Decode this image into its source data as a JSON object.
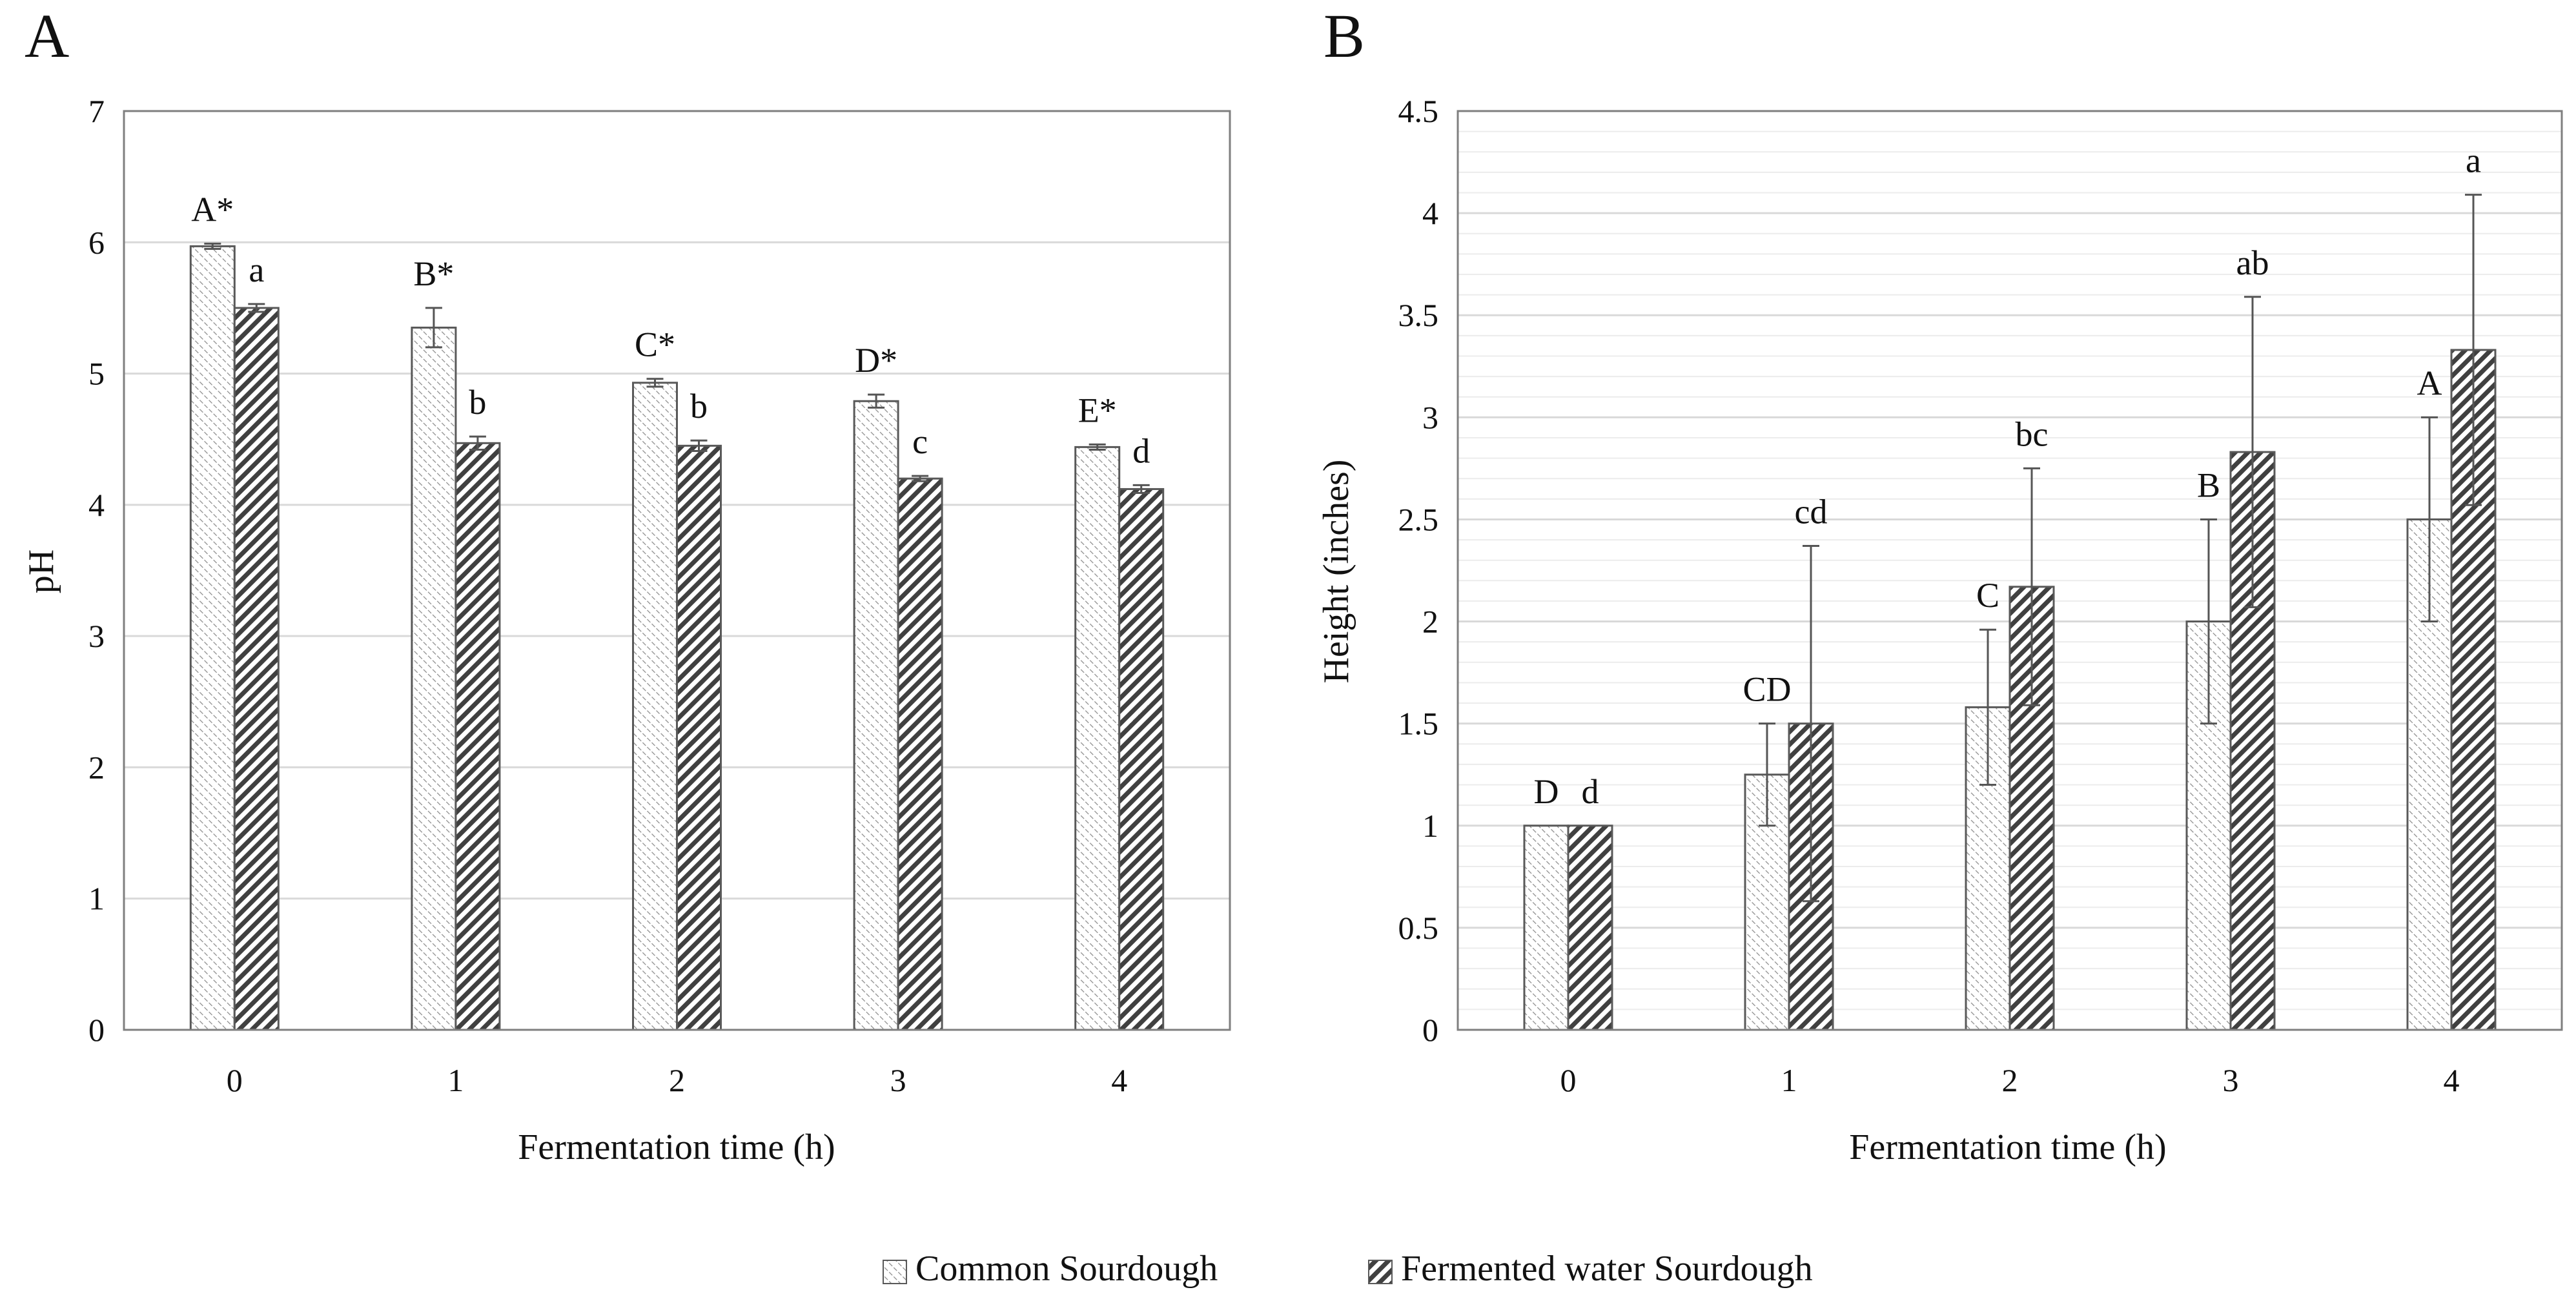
{
  "figure": {
    "legend": {
      "common_label": "Common Sourdough",
      "fermented_label": "Fermented water Sourdough"
    },
    "colors": {
      "frame": "#7f7f7f",
      "gridline": "#d9d9d9",
      "bar_stroke": "#595959",
      "hatch_dark": "#404040",
      "hatch_light": "#8c8c8c"
    }
  },
  "chart_data": [
    {
      "panel": "A",
      "type": "bar",
      "title": "",
      "xlabel": "Fermentation time (h)",
      "ylabel": "pH",
      "ylim": [
        0,
        7
      ],
      "yticks": [
        0,
        1,
        2,
        3,
        4,
        5,
        6,
        7
      ],
      "grid": true,
      "categories": [
        "0",
        "1",
        "2",
        "3",
        "4"
      ],
      "series": [
        {
          "name": "Common Sourdough",
          "pattern": "light",
          "values": [
            5.97,
            5.35,
            4.93,
            4.79,
            4.44
          ],
          "errors": [
            0.02,
            0.15,
            0.03,
            0.05,
            0.02
          ],
          "labels": [
            "A*",
            "B*",
            "C*",
            "D*",
            "E*"
          ]
        },
        {
          "name": "Fermented water Sourdough",
          "pattern": "dark",
          "values": [
            5.5,
            4.47,
            4.45,
            4.2,
            4.12
          ],
          "errors": [
            0.03,
            0.05,
            0.04,
            0.02,
            0.03
          ],
          "labels": [
            "a",
            "b",
            "b",
            "c",
            "d"
          ]
        }
      ]
    },
    {
      "panel": "B",
      "type": "bar",
      "title": "",
      "xlabel": "Fermentation time (h)",
      "ylabel": "Height (inches)",
      "ylim": [
        0,
        4.5
      ],
      "yticks": [
        "0",
        "0.5",
        "1",
        "1.5",
        "2",
        "2.5",
        "3",
        "3.5",
        "4",
        "4.5"
      ],
      "grid": true,
      "categories": [
        "0",
        "1",
        "2",
        "3",
        "4"
      ],
      "series": [
        {
          "name": "Common Sourdough",
          "pattern": "light",
          "values": [
            1.0,
            1.25,
            1.58,
            2.0,
            2.5
          ],
          "errors": [
            0,
            0.25,
            0.38,
            0.5,
            0.5
          ],
          "labels": [
            "D",
            "CD",
            "C",
            "B",
            "A"
          ]
        },
        {
          "name": "Fermented water Sourdough",
          "pattern": "dark",
          "values": [
            1.0,
            1.5,
            2.17,
            2.83,
            3.33
          ],
          "errors": [
            0,
            0.87,
            0.58,
            0.76,
            0.76
          ],
          "labels": [
            "d",
            "cd",
            "bc",
            "ab",
            "a"
          ]
        }
      ]
    }
  ]
}
